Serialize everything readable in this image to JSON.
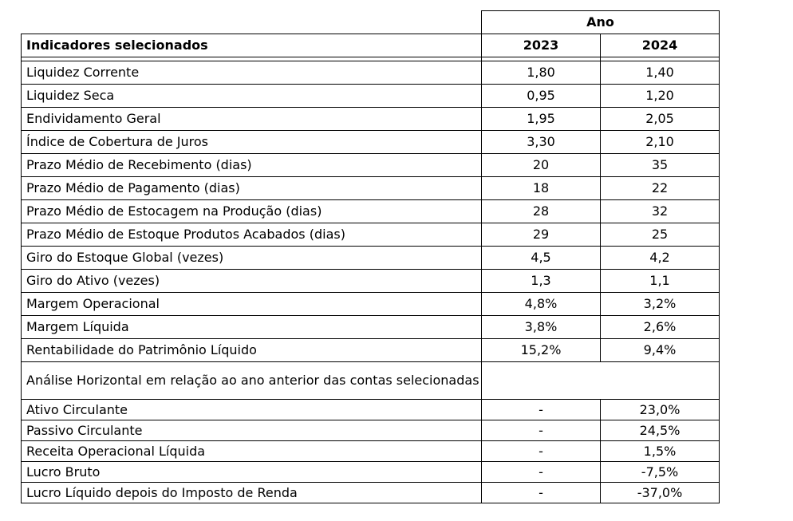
{
  "table": {
    "group_header": "Ano",
    "header": {
      "label": "Indicadores selecionados",
      "col2023": "2023",
      "col2024": "2024"
    },
    "rows": [
      {
        "label": "Liquidez Corrente",
        "v2023": "1,80",
        "v2024": "1,40"
      },
      {
        "label": "Liquidez Seca",
        "v2023": "0,95",
        "v2024": "1,20"
      },
      {
        "label": "Endividamento Geral",
        "v2023": "1,95",
        "v2024": "2,05"
      },
      {
        "label": "Índice de Cobertura de Juros",
        "v2023": "3,30",
        "v2024": "2,10"
      },
      {
        "label": "Prazo Médio de Recebimento (dias)",
        "v2023": "20",
        "v2024": "35"
      },
      {
        "label": "Prazo Médio de Pagamento (dias)",
        "v2023": "18",
        "v2024": "22"
      },
      {
        "label": "Prazo Médio de Estocagem na Produção (dias)",
        "v2023": "28",
        "v2024": "32"
      },
      {
        "label": "Prazo Médio de Estoque Produtos Acabados (dias)",
        "v2023": "29",
        "v2024": "25"
      },
      {
        "label": "Giro do Estoque Global (vezes)",
        "v2023": "4,5",
        "v2024": "4,2"
      },
      {
        "label": "Giro do Ativo (vezes)",
        "v2023": "1,3",
        "v2024": "1,1"
      },
      {
        "label": "Margem Operacional",
        "v2023": "4,8%",
        "v2024": "3,2%"
      },
      {
        "label": "Margem Líquida",
        "v2023": "3,8%",
        "v2024": "2,6%"
      },
      {
        "label": "Rentabilidade do Patrimônio Líquido",
        "v2023": "15,2%",
        "v2024": "9,4%"
      }
    ],
    "section_label": "Análise Horizontal em relação ao ano anterior das contas selecionadas",
    "sub_rows": [
      {
        "label": "Ativo Circulante",
        "v2023": "-",
        "v2024": "23,0%"
      },
      {
        "label": "Passivo Circulante",
        "v2023": "-",
        "v2024": "24,5%"
      },
      {
        "label": "Receita Operacional Líquida",
        "v2023": "-",
        "v2024": "1,5%"
      },
      {
        "label": "Lucro Bruto",
        "v2023": "-",
        "v2024": "-7,5%"
      },
      {
        "label": "Lucro Líquido depois do Imposto de Renda",
        "v2023": "-",
        "v2024": "-37,0%"
      }
    ]
  }
}
